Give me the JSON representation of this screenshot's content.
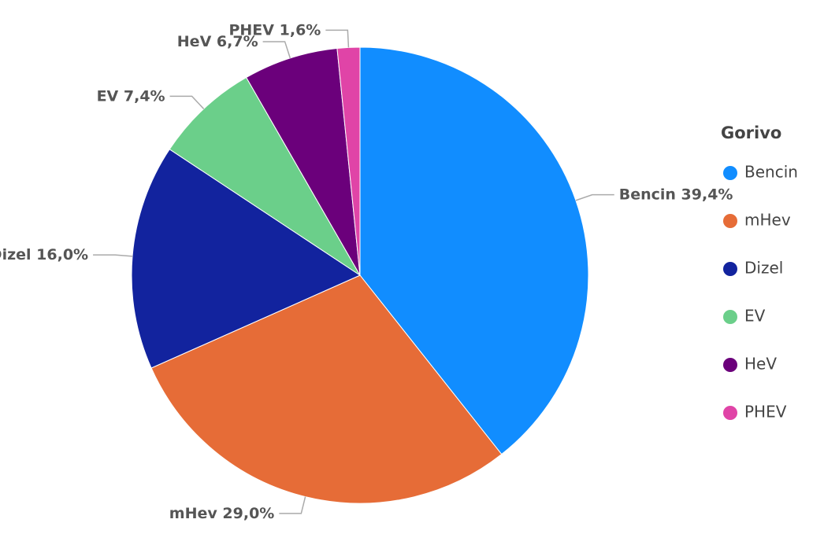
{
  "chart_data": {
    "type": "pie",
    "legend_title": "Gorivo",
    "categories": [
      "Bencin",
      "mHev",
      "Dizel",
      "EV",
      "HeV",
      "PHEV"
    ],
    "values": [
      39.4,
      29.0,
      16.0,
      7.4,
      6.7,
      1.6
    ],
    "value_labels": [
      "39,4%",
      "29,0%",
      "16,0%",
      "7,4%",
      "6,7%",
      "1,6%"
    ],
    "colors": [
      "#118dff",
      "#e66c37",
      "#12239e",
      "#6bcf8a",
      "#6b007b",
      "#e044a7"
    ],
    "legend": "right"
  }
}
